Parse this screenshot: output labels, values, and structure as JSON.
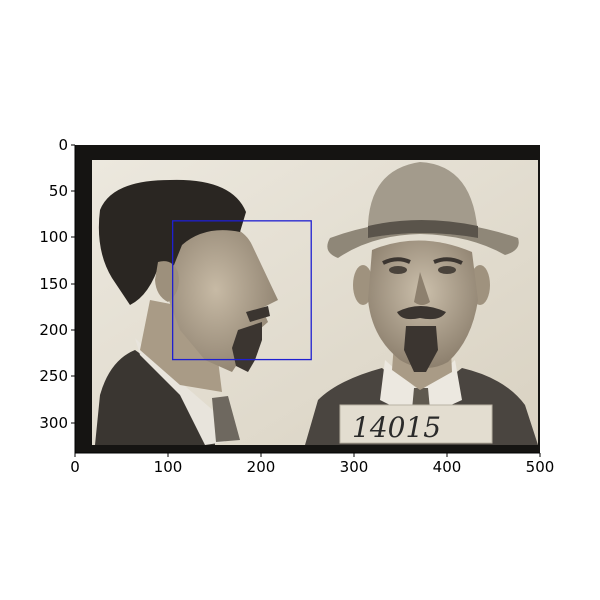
{
  "image": {
    "tag_number": "14015",
    "palette": {
      "outer_frame": "#151412",
      "paper": "#e6e1d5",
      "paper_dark": "#cfc8b8",
      "hair": "#2a2622",
      "skin": "#b9ab96",
      "skin_shadow": "#8f8270",
      "jacket": "#3a3631",
      "shirt": "#e8e4dc",
      "hat": "#a39b8c",
      "hat_band": "#5a544b",
      "beard": "#3b3530"
    }
  },
  "overlay": {
    "region_color": "#1f1fd1",
    "region_data": {
      "x": [
        105,
        254
      ],
      "y": [
        82,
        232
      ]
    }
  },
  "axes": {
    "xlim": [
      0,
      500
    ],
    "ylim": [
      0,
      333
    ],
    "y_inverted": true,
    "x_ticks": [
      "0",
      "100",
      "200",
      "300",
      "400",
      "500"
    ],
    "y_ticks": [
      "0",
      "50",
      "100",
      "150",
      "200",
      "250",
      "300"
    ],
    "grid": false
  }
}
